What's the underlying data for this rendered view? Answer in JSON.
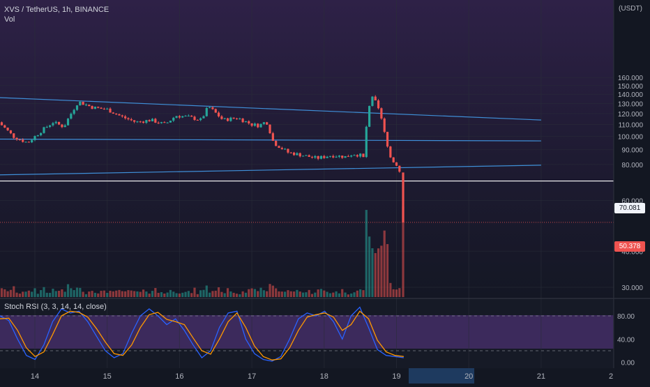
{
  "header": {
    "symbol_line": "XVS / TetherUS, 1h, BINANCE",
    "volume_label": "Vol",
    "currency_label": "USDT"
  },
  "colors": {
    "background": "#131722",
    "gradient_top": "#2e2147",
    "up_candle": "#26a69a",
    "down_candle": "#ef5350",
    "trendline": "#3f8fd8",
    "stoch_k": "#2962ff",
    "stoch_d": "#ff9800",
    "stoch_band": "#7e57c2"
  },
  "price_labels": {
    "horizontal_level": "70.081",
    "last_price": "50.378"
  },
  "stoch_rsi": {
    "label": "Stoch RSI (3, 3, 14, 14, close)",
    "ticks": [
      "80.00",
      "40.00",
      "0.00"
    ]
  },
  "chart_data": [
    {
      "type": "candlestick",
      "title": "XVS / TetherUS, 1h, BINANCE",
      "x_ticks": [
        "14",
        "15",
        "16",
        "17",
        "18",
        "19",
        "20",
        "21",
        "2"
      ],
      "y_ticks": [
        "160.000",
        "150.000",
        "140.000",
        "130.000",
        "120.000",
        "110.000",
        "100.000",
        "90.000",
        "80.000",
        "60.000",
        "40.000",
        "30.000"
      ],
      "ylim": [
        25,
        170
      ],
      "y_scale": "log",
      "key_points": {
        "early_low": 94,
        "day14_high": 136,
        "day16_high": 128,
        "consolidation": 86,
        "spike_high": 143,
        "spike_close": 137,
        "horizontal_level": 70.081,
        "last": 50.378
      },
      "close_path_x": [
        13.5,
        13.7,
        13.9,
        14.1,
        14.25,
        14.4,
        14.5,
        14.6,
        14.8,
        15.0,
        15.2,
        15.4,
        15.6,
        15.8,
        15.95,
        16.1,
        16.3,
        16.4,
        16.6,
        16.8,
        17.0,
        17.1,
        17.2,
        17.3,
        17.5,
        17.7,
        17.9,
        18.1,
        18.3,
        18.4,
        18.5,
        18.55,
        18.6,
        18.67,
        18.72,
        18.78,
        18.85,
        18.9,
        18.95,
        19.0,
        19.05
      ],
      "close_path_y": [
        112,
        100,
        95,
        105,
        112,
        108,
        120,
        132,
        126,
        124,
        117,
        112,
        114,
        110,
        118,
        117,
        114,
        127,
        114,
        116,
        110,
        109,
        113,
        95,
        88,
        86,
        84,
        86,
        85,
        87,
        86,
        84,
        120,
        137,
        130,
        118,
        98,
        86,
        82,
        80,
        75
      ],
      "final_drop": [
        75,
        50.378
      ],
      "lines": [
        {
          "from": [
            13.0,
            138
          ],
          "to": [
            21.0,
            114
          ]
        },
        {
          "from": [
            13.0,
            98
          ],
          "to": [
            21.0,
            96.5
          ]
        },
        {
          "from": [
            13.0,
            73.2
          ],
          "to": [
            21.0,
            79.5
          ]
        },
        {
          "level": 70.081
        }
      ]
    },
    {
      "type": "line",
      "title": "Stoch RSI (3, 3, 14, 14, close)",
      "ylim": [
        -10,
        110
      ],
      "y_ticks": [
        "80.00",
        "40.00",
        "0.00"
      ],
      "bands": [
        20,
        80
      ],
      "series": [
        {
          "values": [
            80,
            72,
            40,
            12,
            5,
            30,
            70,
            92,
            85,
            88,
            70,
            45,
            20,
            8,
            15,
            50,
            80,
            92,
            80,
            65,
            75,
            55,
            30,
            8,
            20,
            60,
            85,
            88,
            40,
            15,
            5,
            2,
            10,
            40,
            75,
            85,
            80,
            88,
            70,
            40,
            80,
            95,
            60,
            22,
            12,
            10,
            8
          ]
        },
        {
          "values": [
            75,
            76,
            55,
            25,
            10,
            18,
            48,
            80,
            88,
            86,
            78,
            58,
            35,
            15,
            12,
            30,
            60,
            82,
            86,
            74,
            70,
            65,
            42,
            20,
            14,
            40,
            70,
            85,
            60,
            28,
            10,
            4,
            6,
            25,
            55,
            78,
            82,
            85,
            78,
            55,
            65,
            88,
            75,
            38,
            18,
            12,
            10
          ]
        }
      ]
    }
  ]
}
